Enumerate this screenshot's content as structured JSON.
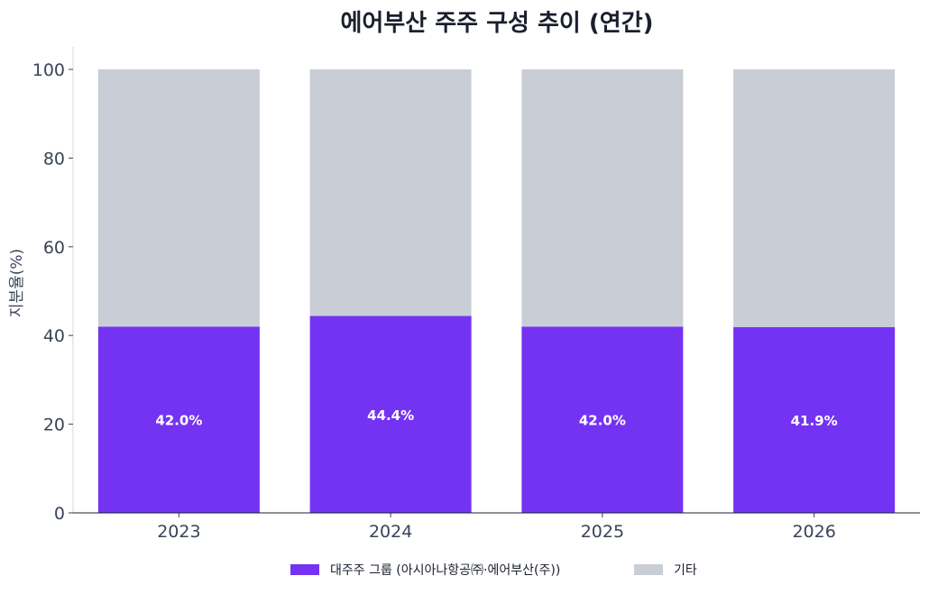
{
  "chart_data": {
    "type": "bar",
    "stacked": true,
    "title": "에어부산 주주 구성 추이 (연간)",
    "xlabel": "",
    "ylabel": "지분율(%)",
    "categories": [
      "2023",
      "2024",
      "2025",
      "2026"
    ],
    "ylim": [
      0,
      100
    ],
    "yticks": [
      0,
      20,
      40,
      60,
      80,
      100
    ],
    "grid": false,
    "legend_position": "bottom",
    "series": [
      {
        "name": "대주주 그룹 (아시아나항공㈜·에어부산(주))",
        "color": "#7433f2",
        "values": [
          42.0,
          44.4,
          42.0,
          41.9
        ]
      },
      {
        "name": "기타",
        "color": "#c9cdd6",
        "values": [
          58.0,
          55.6,
          58.0,
          58.1
        ]
      }
    ],
    "data_labels": [
      "42.0%",
      "44.4%",
      "42.0%",
      "41.9%"
    ]
  }
}
